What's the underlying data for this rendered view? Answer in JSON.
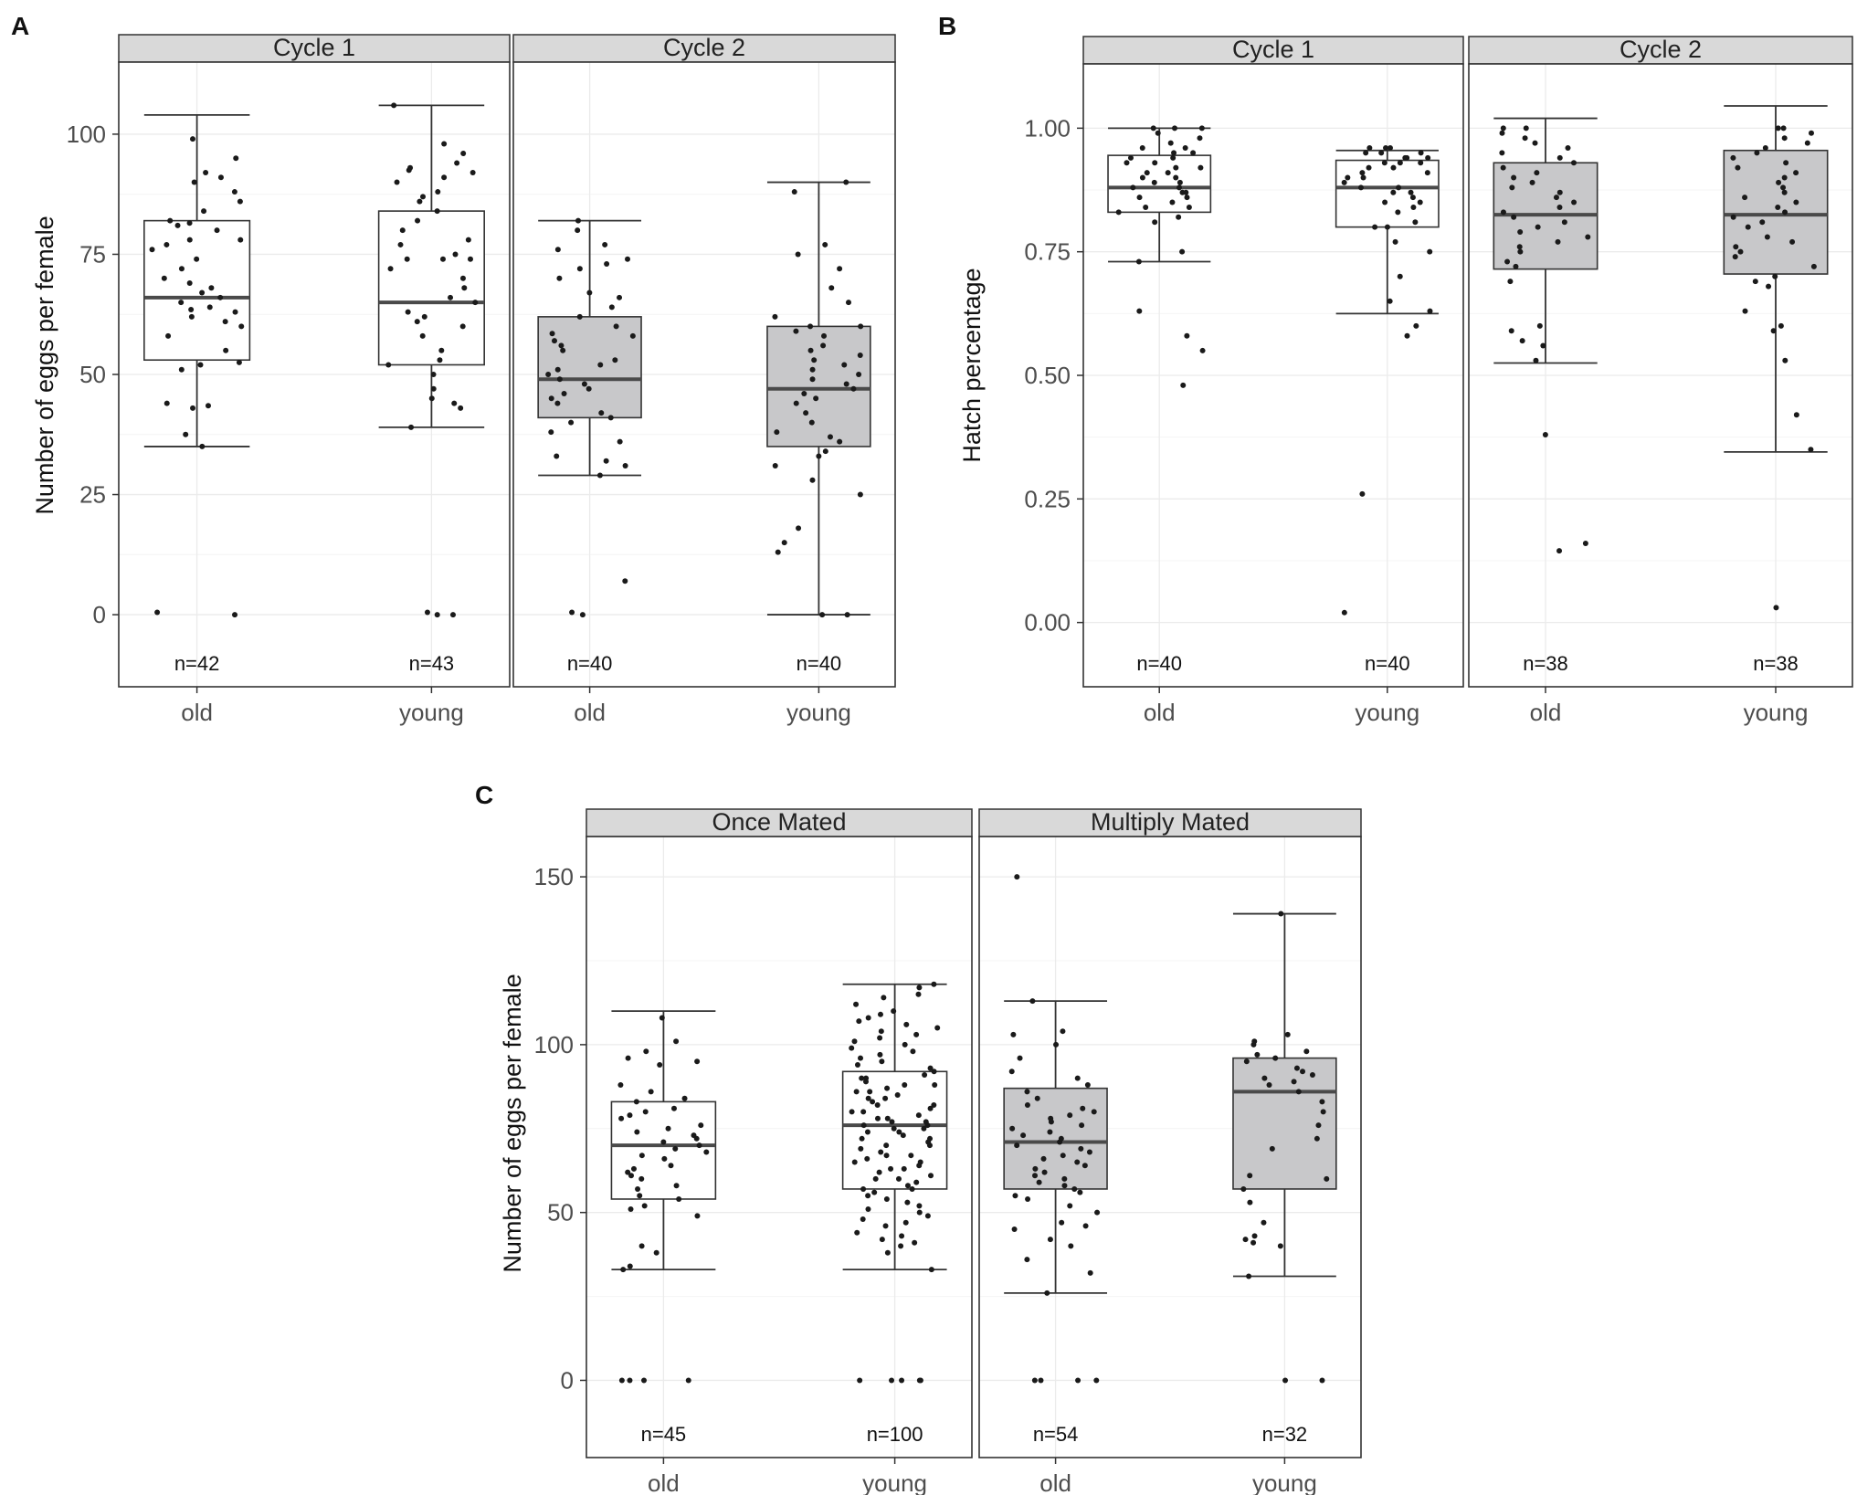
{
  "panel_labels": [
    "A",
    "B",
    "C"
  ],
  "chart_data": [
    {
      "panel": "A",
      "type": "box",
      "ylabel": "Number of eggs per female",
      "xlabel": "",
      "ylim": [
        -15,
        115
      ],
      "yticks": [
        0,
        25,
        50,
        75,
        100
      ],
      "ytick_labels": [
        "0",
        "25",
        "50",
        "75",
        "100"
      ],
      "categories": [
        "old",
        "young"
      ],
      "facets": [
        {
          "title": "Cycle 1",
          "fill": "#ffffff",
          "boxes": [
            {
              "group": "old",
              "n_label": "n=42",
              "lower_whisker": 35,
              "q1": 53,
              "median": 66,
              "q3": 82,
              "upper_whisker": 104,
              "points": [
                0,
                0.5,
                35,
                37.5,
                43,
                43.5,
                44,
                51,
                52,
                52.5,
                55,
                58,
                60,
                61,
                62,
                63,
                63.5,
                64,
                65,
                66,
                67,
                68,
                69,
                70,
                72,
                74,
                76,
                77,
                78,
                78,
                80,
                81,
                81.5,
                82,
                84,
                86,
                88,
                90,
                91,
                92,
                95,
                99
              ]
            },
            {
              "group": "young",
              "n_label": "n=43",
              "lower_whisker": 39,
              "q1": 52,
              "median": 65,
              "q3": 84,
              "upper_whisker": 106,
              "points": [
                0,
                0,
                0.5,
                39,
                43,
                44,
                45,
                47,
                50,
                52,
                53,
                55,
                58,
                60,
                61,
                62,
                63,
                65,
                66,
                68,
                70,
                72,
                74,
                74,
                74,
                75,
                77,
                78,
                80,
                82,
                84,
                86,
                87,
                88,
                90,
                91,
                92,
                92.5,
                93,
                94,
                96,
                98,
                106
              ]
            }
          ]
        },
        {
          "title": "Cycle 2",
          "fill": "#c8c8ca",
          "boxes": [
            {
              "group": "old",
              "n_label": "n=40",
              "lower_whisker": 29,
              "q1": 41,
              "median": 49,
              "q3": 62,
              "upper_whisker": 82,
              "points": [
                0,
                0.5,
                7,
                29,
                31,
                32,
                33,
                36,
                38,
                40,
                41,
                42,
                44,
                45,
                46,
                47,
                48,
                49,
                50,
                51,
                52,
                53,
                55,
                56,
                57,
                58,
                58.5,
                60,
                62,
                64,
                66,
                67,
                70,
                72,
                73,
                74,
                76,
                77,
                80,
                82
              ]
            },
            {
              "group": "young",
              "n_label": "n=40",
              "lower_whisker": 0,
              "q1": 35,
              "median": 47,
              "q3": 60,
              "upper_whisker": 90,
              "points": [
                0,
                0,
                13,
                15,
                18,
                25,
                28,
                31,
                33,
                34,
                36,
                37,
                38,
                40,
                42,
                44,
                45,
                46,
                47,
                48,
                49,
                50,
                51,
                52,
                53,
                54,
                55,
                56,
                58,
                59,
                60,
                60,
                62,
                65,
                68,
                72,
                75,
                77,
                88,
                90
              ]
            }
          ]
        }
      ]
    },
    {
      "panel": "B",
      "type": "box",
      "ylabel": "Hatch percentage",
      "xlabel": "",
      "ylim": [
        -0.13,
        1.13
      ],
      "yticks": [
        0,
        0.25,
        0.5,
        0.75,
        1.0
      ],
      "ytick_labels": [
        "0.00",
        "0.25",
        "0.50",
        "0.75",
        "1.00"
      ],
      "categories": [
        "old",
        "young"
      ],
      "facets": [
        {
          "title": "Cycle 1",
          "fill": "#ffffff",
          "boxes": [
            {
              "group": "old",
              "n_label": "n=40",
              "lower_whisker": 0.73,
              "q1": 0.83,
              "median": 0.88,
              "q3": 0.945,
              "upper_whisker": 1.0,
              "points": [
                0.48,
                0.55,
                0.58,
                0.63,
                0.73,
                0.75,
                0.81,
                0.82,
                0.83,
                0.84,
                0.84,
                0.85,
                0.86,
                0.86,
                0.87,
                0.87,
                0.88,
                0.88,
                0.89,
                0.89,
                0.9,
                0.9,
                0.91,
                0.91,
                0.92,
                0.92,
                0.93,
                0.93,
                0.94,
                0.94,
                0.95,
                0.95,
                0.96,
                0.96,
                0.97,
                0.98,
                0.99,
                1.0,
                1.0,
                1.0
              ]
            },
            {
              "group": "young",
              "n_label": "n=40",
              "lower_whisker": 0.625,
              "q1": 0.8,
              "median": 0.88,
              "q3": 0.935,
              "upper_whisker": 0.955,
              "points": [
                0.02,
                0.26,
                0.58,
                0.6,
                0.63,
                0.65,
                0.7,
                0.75,
                0.77,
                0.8,
                0.8,
                0.81,
                0.83,
                0.84,
                0.85,
                0.85,
                0.86,
                0.87,
                0.87,
                0.88,
                0.88,
                0.89,
                0.9,
                0.9,
                0.91,
                0.91,
                0.92,
                0.92,
                0.93,
                0.93,
                0.93,
                0.94,
                0.94,
                0.94,
                0.95,
                0.95,
                0.95,
                0.96,
                0.96,
                0.96
              ]
            }
          ]
        },
        {
          "title": "Cycle 2",
          "fill": "#c8c8ca",
          "boxes": [
            {
              "group": "old",
              "n_label": "n=38",
              "lower_whisker": 0.525,
              "q1": 0.715,
              "median": 0.825,
              "q3": 0.93,
              "upper_whisker": 1.02,
              "points": [
                0.145,
                0.16,
                0.38,
                0.53,
                0.56,
                0.57,
                0.59,
                0.6,
                0.69,
                0.72,
                0.73,
                0.75,
                0.76,
                0.77,
                0.78,
                0.79,
                0.8,
                0.81,
                0.82,
                0.83,
                0.84,
                0.85,
                0.86,
                0.87,
                0.88,
                0.89,
                0.9,
                0.91,
                0.92,
                0.93,
                0.94,
                0.95,
                0.96,
                0.97,
                0.98,
                0.99,
                1.0,
                1.0
              ]
            },
            {
              "group": "young",
              "n_label": "n=38",
              "lower_whisker": 0.345,
              "q1": 0.705,
              "median": 0.825,
              "q3": 0.955,
              "upper_whisker": 1.045,
              "points": [
                0.03,
                0.35,
                0.42,
                0.53,
                0.59,
                0.6,
                0.63,
                0.68,
                0.69,
                0.7,
                0.72,
                0.74,
                0.75,
                0.76,
                0.77,
                0.78,
                0.8,
                0.81,
                0.82,
                0.83,
                0.84,
                0.85,
                0.86,
                0.87,
                0.88,
                0.89,
                0.9,
                0.91,
                0.92,
                0.93,
                0.94,
                0.95,
                0.96,
                0.97,
                0.98,
                0.99,
                1.0,
                1.0
              ]
            }
          ]
        }
      ]
    },
    {
      "panel": "C",
      "type": "box",
      "ylabel": "Number of eggs per female",
      "xlabel": "",
      "ylim": [
        -23,
        162
      ],
      "yticks": [
        0,
        50,
        100,
        150
      ],
      "ytick_labels": [
        "0",
        "50",
        "100",
        "150"
      ],
      "categories": [
        "old",
        "young"
      ],
      "facets": [
        {
          "title": "Once Mated",
          "fill": "#ffffff",
          "boxes": [
            {
              "group": "old",
              "n_label": "n=45",
              "lower_whisker": 33,
              "q1": 54,
              "median": 70,
              "q3": 83,
              "upper_whisker": 110,
              "points": [
                0,
                0,
                0,
                0,
                33,
                34,
                38,
                40,
                49,
                51,
                52,
                54,
                55,
                57,
                58,
                60,
                61,
                62,
                63,
                64,
                66,
                67,
                68,
                69,
                70,
                71,
                72,
                73,
                74,
                75,
                76,
                78,
                79,
                80,
                81,
                83,
                84,
                86,
                88,
                94,
                95,
                96,
                98,
                101,
                108
              ]
            },
            {
              "group": "young",
              "n_label": "n=100",
              "lower_whisker": 33,
              "q1": 57,
              "median": 76,
              "q3": 92,
              "upper_whisker": 118,
              "points": [
                0,
                0,
                0,
                0,
                0,
                33,
                38,
                40,
                41,
                42,
                43,
                44,
                46,
                47,
                48,
                49,
                50,
                51,
                52,
                53,
                54,
                55,
                56,
                57,
                57,
                58,
                59,
                60,
                60,
                61,
                62,
                63,
                63,
                64,
                65,
                65,
                66,
                67,
                67,
                68,
                69,
                70,
                70,
                71,
                72,
                72,
                73,
                74,
                74,
                75,
                75,
                76,
                76,
                77,
                77,
                78,
                78,
                79,
                80,
                80,
                81,
                82,
                82,
                83,
                84,
                84,
                85,
                86,
                86,
                87,
                88,
                88,
                89,
                90,
                90,
                91,
                92,
                93,
                94,
                95,
                96,
                97,
                98,
                99,
                100,
                101,
                102,
                103,
                104,
                105,
                106,
                107,
                108,
                109,
                110,
                112,
                114,
                115,
                117,
                118
              ]
            }
          ]
        },
        {
          "title": "Multiply Mated",
          "fill": "#c8c8ca",
          "boxes": [
            {
              "group": "old",
              "n_label": "n=54",
              "lower_whisker": 26,
              "q1": 57,
              "median": 71,
              "q3": 87,
              "upper_whisker": 113,
              "points": [
                0,
                0,
                0,
                0,
                26,
                32,
                36,
                40,
                42,
                45,
                46,
                47,
                50,
                52,
                54,
                55,
                56,
                57,
                58,
                59,
                60,
                61,
                62,
                63,
                64,
                65,
                66,
                67,
                68,
                69,
                70,
                71,
                72,
                73,
                74,
                75,
                76,
                77,
                78,
                79,
                80,
                81,
                82,
                84,
                86,
                88,
                90,
                92,
                96,
                100,
                103,
                104,
                113,
                150
              ]
            },
            {
              "group": "young",
              "n_label": "n=32",
              "lower_whisker": 31,
              "q1": 57,
              "median": 86,
              "q3": 96,
              "upper_whisker": 139,
              "points": [
                0,
                0,
                31,
                40,
                41,
                42,
                43,
                47,
                53,
                57,
                60,
                61,
                69,
                72,
                76,
                80,
                83,
                86,
                88,
                89,
                90,
                91,
                92,
                93,
                95,
                96,
                97,
                98,
                100,
                101,
                103,
                139
              ]
            }
          ]
        }
      ]
    }
  ]
}
